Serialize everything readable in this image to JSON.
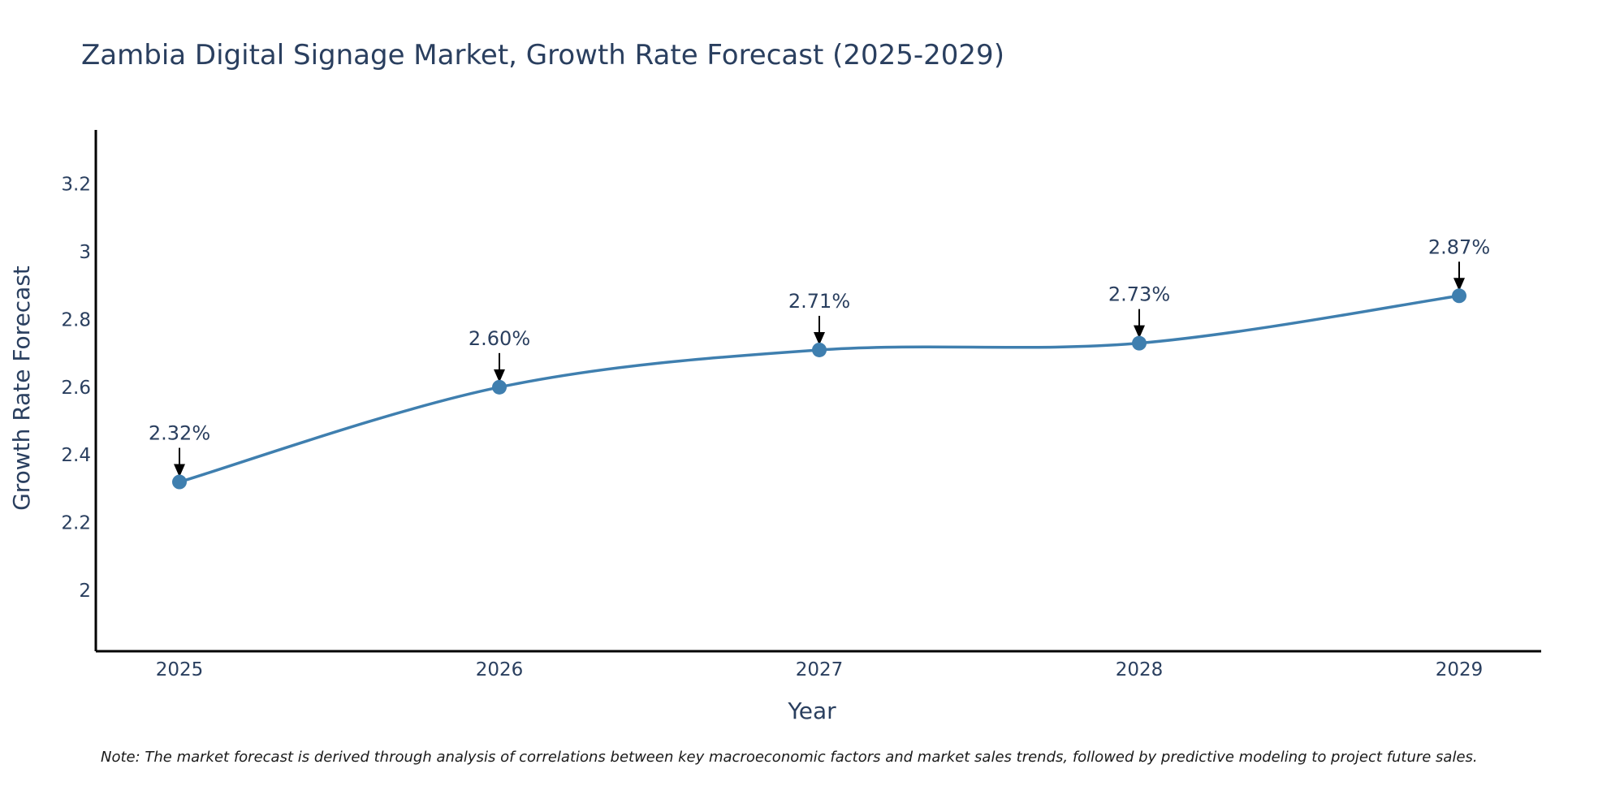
{
  "chart_data": {
    "type": "line",
    "title": "Zambia Digital Signage Market, Growth Rate Forecast (2025-2029)",
    "xlabel": "Year",
    "ylabel": "Growth Rate Forecast",
    "categories": [
      "2025",
      "2026",
      "2027",
      "2028",
      "2029"
    ],
    "series": [
      {
        "name": "Growth Rate Forecast",
        "values": [
          2.32,
          2.6,
          2.71,
          2.73,
          2.87
        ],
        "color": "#3f7faf"
      }
    ],
    "data_labels": [
      "2.32%",
      "2.60%",
      "2.71%",
      "2.73%",
      "2.87%"
    ],
    "ylim": [
      1.82,
      3.36
    ],
    "yticks": [
      2,
      2.2,
      2.4,
      2.6,
      2.8,
      3,
      3.2
    ],
    "ytick_labels": [
      "2",
      "2.2",
      "2.4",
      "2.6",
      "2.8",
      "3",
      "3.2"
    ],
    "grid": false,
    "line_shape": "spline",
    "note": "Note: The market forecast is derived through analysis of correlations between key macroeconomic factors and market sales trends, followed by predictive modeling to project future sales."
  },
  "colors": {
    "axis": "#000000",
    "text": "#2a3f5f",
    "line": "#3f7faf",
    "marker": "#3f7faf",
    "arrow": "#000000"
  }
}
